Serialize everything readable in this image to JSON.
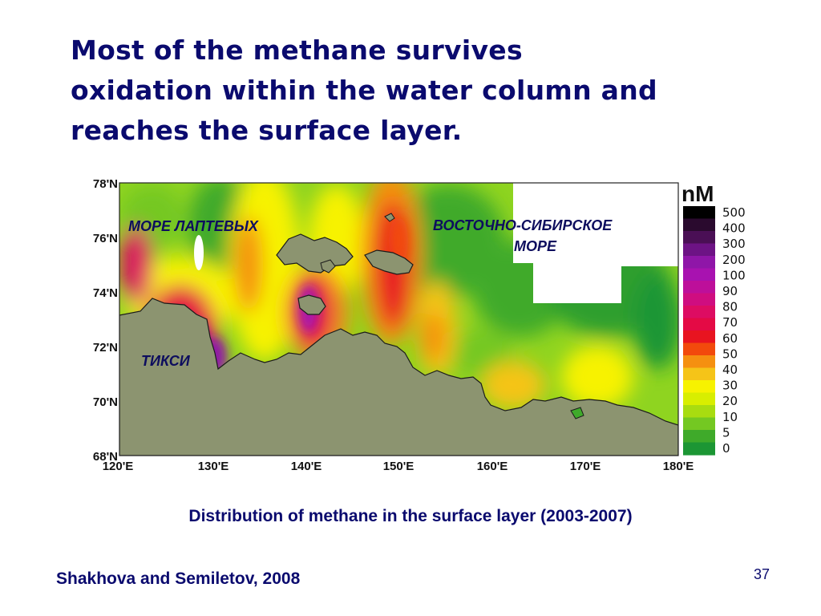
{
  "slide": {
    "title_lines": [
      "Most of the methane survives",
      "oxidation within the water column and",
      "reaches the surface layer."
    ],
    "caption": "Distribution of methane in the surface layer (2003-2007)",
    "citation": "Shakhova and Semiletov, 2008",
    "page_number": "37"
  },
  "map": {
    "lat_labels": [
      "78'N",
      "76'N",
      "74'N",
      "72'N",
      "70'N",
      "68'N"
    ],
    "lon_labels": [
      "120'E",
      "130'E",
      "140'E",
      "150'E",
      "160'E",
      "170'E",
      "180'E"
    ],
    "region_labels": {
      "laptev_sea": "МОРЕ ЛАПТЕВЫХ",
      "east_siberian_sea_line1": "ВОСТОЧНО-СИБИРСКОЕ",
      "east_siberian_sea_line2": "МОРЕ",
      "tiksi": "ТИКСИ"
    },
    "colors": {
      "land": "#8c9470",
      "no_data": "#ffffff",
      "coast": "#1a1a1a"
    }
  },
  "legend": {
    "unit": "nM",
    "labels": [
      "500",
      "400",
      "300",
      "200",
      "100",
      "90",
      "80",
      "70",
      "60",
      "50",
      "40",
      "30",
      "20",
      "10",
      "5",
      "0"
    ],
    "colors": [
      "#000000",
      "#2a0a2e",
      "#4a0f55",
      "#6d1385",
      "#8f16a8",
      "#a812b0",
      "#bd0f9a",
      "#cf0d80",
      "#dd0c62",
      "#e40a45",
      "#e81420",
      "#f24a0c",
      "#f59010",
      "#f5c418",
      "#f7f200",
      "#d8ee00",
      "#a8dc10",
      "#74c822",
      "#3faa2a",
      "#1c9634"
    ]
  }
}
